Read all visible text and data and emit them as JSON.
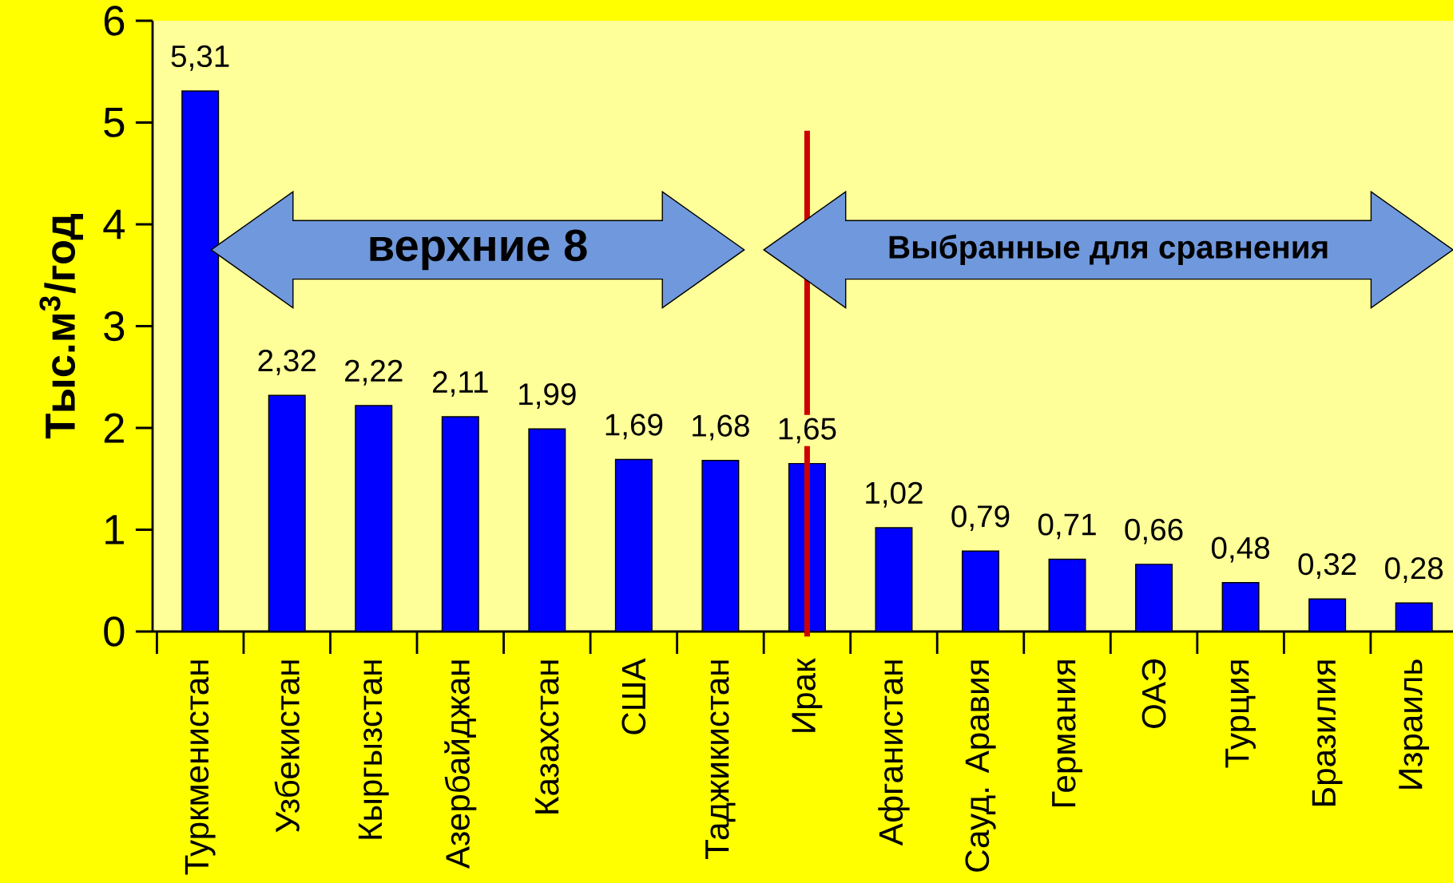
{
  "chart_data": {
    "type": "bar",
    "ylabel": "Тыс.м$^{3}$/год",
    "categories": [
      "Туркменистан",
      "Узбекистан",
      "Кыргызстан",
      "Азербайджан",
      "Казахстан",
      "США",
      "Таджикистан",
      "Ирак",
      "Афганистан",
      "Сауд. Аравия",
      "Германия",
      "ОАЭ",
      "Турция",
      "Бразилия",
      "Израиль"
    ],
    "values": [
      5.31,
      2.32,
      2.22,
      2.11,
      1.99,
      1.69,
      1.68,
      1.65,
      1.02,
      0.79,
      0.71,
      0.66,
      0.48,
      0.32,
      0.28
    ],
    "value_labels": [
      "5,31",
      "2,32",
      "2,22",
      "2,11",
      "1,99",
      "1,69",
      "1,68",
      "1,65",
      "1,02",
      "0,79",
      "0,71",
      "0,66",
      "0,48",
      "0,32",
      "0,28"
    ],
    "color": "#0000ff",
    "ylim": [
      0,
      6
    ],
    "yticks": [
      0,
      1,
      2,
      3,
      4,
      5,
      6
    ],
    "grid": false,
    "ref_lines": [
      {
        "axis": "x",
        "value": "Ирак",
        "color": "#cc0000"
      }
    ],
    "annotations": [
      "верхние 8",
      "Выбранные для сравнения"
    ]
  }
}
